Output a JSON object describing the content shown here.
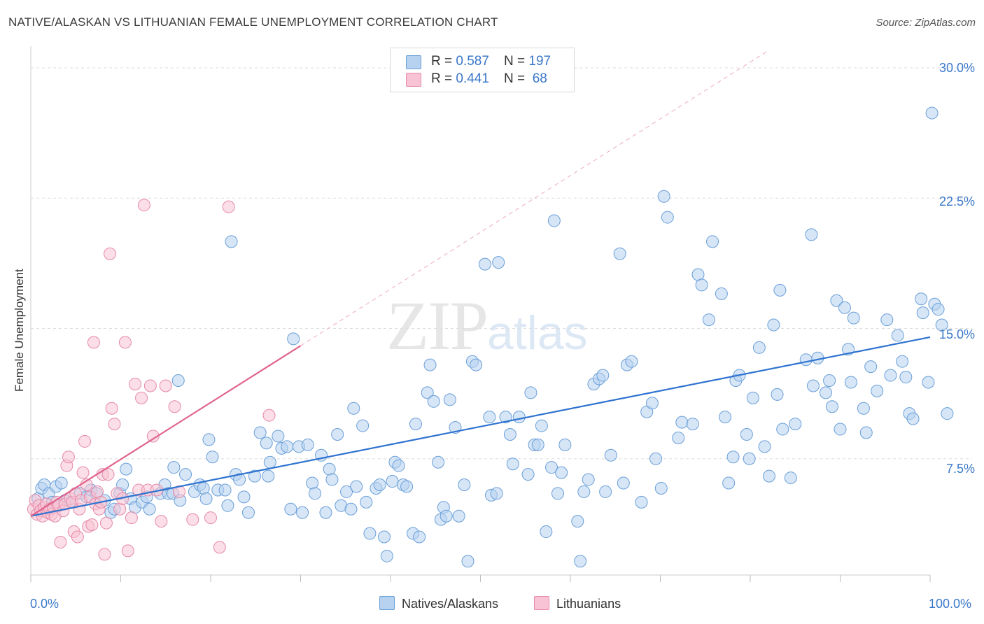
{
  "header": {
    "title": "NATIVE/ALASKAN VS LITHUANIAN FEMALE UNEMPLOYMENT CORRELATION CHART",
    "source": "Source: ZipAtlas.com"
  },
  "legend": {
    "rows": [
      {
        "r_label": "R = ",
        "r_value": "0.587",
        "n_label": "N = ",
        "n_value": "197"
      },
      {
        "r_label": "R = ",
        "r_value": "0.441",
        "n_label": "N = ",
        "n_value": " 68"
      }
    ]
  },
  "bottom_legend": {
    "natives": "Natives/Alaskans",
    "lithuanians": "Lithuanians"
  },
  "watermark": {
    "zip": "ZIP",
    "atlas": "atlas"
  },
  "colors": {
    "blue_fill": "#b7d2f1",
    "blue_stroke": "#6a9fd8",
    "blue_line": "#2f73d0",
    "pink_fill": "#f8c3d4",
    "pink_stroke": "#e68aa8",
    "pink_line": "#e0638d",
    "grid": "#dddddd",
    "axis_text": "#3b78c9"
  },
  "chart_data": {
    "type": "scatter",
    "title": "NATIVE/ALASKAN VS LITHUANIAN FEMALE UNEMPLOYMENT CORRELATION CHART",
    "xlabel": "",
    "ylabel": "Female Unemployment",
    "x_ticks": [
      "0.0%",
      "100.0%"
    ],
    "y_ticks": [
      "7.5%",
      "15.0%",
      "22.5%",
      "30.0%"
    ],
    "xlim": [
      0,
      100
    ],
    "ylim": [
      0,
      30.8
    ],
    "grid": true,
    "legend_position": "top-center",
    "series": [
      {
        "name": "Natives/Alaskans",
        "r": 0.587,
        "n": 197,
        "trend": {
          "x": [
            0,
            100
          ],
          "y": [
            4.2,
            14.5
          ]
        },
        "points": [
          [
            0.8,
            5.2
          ],
          [
            1.2,
            5.8
          ],
          [
            1.5,
            6.0
          ],
          [
            2.0,
            5.5
          ],
          [
            2.4,
            5.0
          ],
          [
            2.8,
            5.9
          ],
          [
            3.4,
            6.1
          ],
          [
            3.8,
            5.1
          ],
          [
            4.6,
            5.0
          ],
          [
            5.5,
            5.5
          ],
          [
            6.2,
            5.3
          ],
          [
            6.7,
            5.7
          ],
          [
            7.3,
            5.5
          ],
          [
            8.2,
            5.1
          ],
          [
            8.9,
            4.4
          ],
          [
            9.3,
            4.6
          ],
          [
            9.9,
            5.5
          ],
          [
            10.2,
            6.0
          ],
          [
            10.6,
            6.9
          ],
          [
            11.1,
            5.2
          ],
          [
            11.6,
            4.7
          ],
          [
            12.4,
            5.0
          ],
          [
            12.9,
            5.3
          ],
          [
            13.2,
            4.6
          ],
          [
            14.4,
            5.5
          ],
          [
            14.9,
            6.0
          ],
          [
            15.3,
            5.5
          ],
          [
            15.8,
            5.5
          ],
          [
            15.9,
            7.0
          ],
          [
            16.4,
            12.0
          ],
          [
            16.6,
            5.1
          ],
          [
            17.2,
            6.6
          ],
          [
            18.2,
            5.6
          ],
          [
            18.8,
            6.0
          ],
          [
            19.2,
            5.8
          ],
          [
            19.5,
            5.2
          ],
          [
            19.8,
            8.6
          ],
          [
            20.2,
            7.6
          ],
          [
            20.8,
            5.7
          ],
          [
            21.6,
            5.7
          ],
          [
            21.9,
            4.8
          ],
          [
            22.3,
            20.0
          ],
          [
            22.8,
            6.6
          ],
          [
            23.2,
            6.3
          ],
          [
            23.7,
            5.3
          ],
          [
            24.2,
            4.4
          ],
          [
            24.9,
            6.5
          ],
          [
            25.5,
            9.0
          ],
          [
            26.2,
            8.4
          ],
          [
            26.4,
            6.5
          ],
          [
            26.6,
            7.3
          ],
          [
            27.5,
            8.8
          ],
          [
            27.9,
            8.1
          ],
          [
            28.5,
            8.2
          ],
          [
            28.9,
            4.6
          ],
          [
            29.2,
            14.4
          ],
          [
            29.8,
            8.2
          ],
          [
            30.2,
            4.4
          ],
          [
            30.8,
            8.3
          ],
          [
            31.3,
            6.1
          ],
          [
            31.6,
            5.5
          ],
          [
            32.3,
            7.7
          ],
          [
            32.8,
            4.4
          ],
          [
            33.2,
            6.9
          ],
          [
            33.5,
            6.3
          ],
          [
            34.1,
            8.9
          ],
          [
            34.5,
            4.8
          ],
          [
            35.1,
            5.6
          ],
          [
            35.6,
            4.6
          ],
          [
            35.9,
            10.4
          ],
          [
            36.2,
            5.9
          ],
          [
            36.9,
            9.4
          ],
          [
            37.3,
            5.0
          ],
          [
            37.7,
            3.2
          ],
          [
            38.4,
            5.8
          ],
          [
            38.8,
            6.0
          ],
          [
            39.3,
            3.0
          ],
          [
            39.6,
            1.9
          ],
          [
            40.2,
            6.2
          ],
          [
            40.5,
            7.3
          ],
          [
            40.9,
            7.1
          ],
          [
            41.4,
            6.0
          ],
          [
            41.8,
            5.9
          ],
          [
            42.5,
            3.2
          ],
          [
            42.8,
            9.5
          ],
          [
            43.2,
            3.0
          ],
          [
            44.1,
            11.3
          ],
          [
            44.4,
            12.9
          ],
          [
            44.8,
            10.8
          ],
          [
            45.3,
            7.3
          ],
          [
            45.6,
            4.0
          ],
          [
            45.9,
            4.7
          ],
          [
            46.2,
            4.2
          ],
          [
            46.6,
            10.9
          ],
          [
            47.2,
            9.3
          ],
          [
            47.6,
            4.2
          ],
          [
            48.2,
            6.0
          ],
          [
            48.6,
            1.6
          ],
          [
            49.1,
            13.1
          ],
          [
            49.5,
            12.9
          ],
          [
            50.5,
            18.7
          ],
          [
            51.0,
            9.9
          ],
          [
            51.2,
            5.4
          ],
          [
            51.8,
            5.5
          ],
          [
            52.0,
            18.8
          ],
          [
            52.8,
            9.9
          ],
          [
            53.3,
            8.9
          ],
          [
            53.6,
            7.2
          ],
          [
            54.3,
            9.9
          ],
          [
            55.3,
            6.6
          ],
          [
            55.6,
            11.3
          ],
          [
            56.0,
            8.3
          ],
          [
            56.4,
            8.3
          ],
          [
            56.8,
            9.4
          ],
          [
            57.3,
            3.3
          ],
          [
            57.9,
            7.0
          ],
          [
            58.2,
            21.2
          ],
          [
            58.6,
            5.5
          ],
          [
            59.0,
            6.7
          ],
          [
            59.4,
            8.3
          ],
          [
            60.8,
            3.9
          ],
          [
            61.1,
            1.6
          ],
          [
            61.5,
            5.6
          ],
          [
            62.0,
            6.3
          ],
          [
            62.6,
            11.8
          ],
          [
            63.2,
            12.1
          ],
          [
            63.6,
            12.3
          ],
          [
            63.9,
            5.6
          ],
          [
            64.5,
            7.7
          ],
          [
            65.5,
            19.3
          ],
          [
            65.9,
            6.1
          ],
          [
            66.3,
            12.9
          ],
          [
            66.8,
            13.1
          ],
          [
            67.9,
            5.0
          ],
          [
            68.5,
            10.2
          ],
          [
            69.1,
            10.7
          ],
          [
            69.5,
            7.5
          ],
          [
            70.1,
            5.8
          ],
          [
            70.4,
            22.6
          ],
          [
            70.8,
            21.4
          ],
          [
            72.0,
            8.7
          ],
          [
            72.4,
            9.6
          ],
          [
            73.6,
            9.5
          ],
          [
            74.2,
            18.1
          ],
          [
            74.6,
            17.5
          ],
          [
            75.4,
            15.5
          ],
          [
            75.8,
            20.0
          ],
          [
            76.8,
            17.0
          ],
          [
            77.2,
            9.9
          ],
          [
            77.6,
            6.1
          ],
          [
            78.1,
            7.6
          ],
          [
            78.4,
            12.0
          ],
          [
            78.8,
            12.3
          ],
          [
            79.6,
            8.9
          ],
          [
            79.9,
            7.5
          ],
          [
            80.3,
            11.0
          ],
          [
            81.0,
            13.9
          ],
          [
            81.6,
            8.2
          ],
          [
            82.1,
            6.5
          ],
          [
            82.6,
            15.2
          ],
          [
            83.0,
            11.2
          ],
          [
            83.3,
            17.2
          ],
          [
            83.6,
            9.2
          ],
          [
            84.5,
            6.4
          ],
          [
            85.0,
            9.5
          ],
          [
            86.2,
            13.2
          ],
          [
            86.8,
            20.4
          ],
          [
            87.0,
            11.7
          ],
          [
            87.5,
            13.3
          ],
          [
            88.4,
            11.3
          ],
          [
            88.8,
            12.0
          ],
          [
            89.1,
            10.5
          ],
          [
            89.6,
            16.6
          ],
          [
            90.0,
            9.2
          ],
          [
            90.5,
            16.2
          ],
          [
            90.9,
            13.8
          ],
          [
            91.2,
            11.9
          ],
          [
            91.5,
            15.6
          ],
          [
            92.6,
            10.4
          ],
          [
            92.9,
            9.0
          ],
          [
            93.4,
            12.8
          ],
          [
            94.1,
            11.4
          ],
          [
            95.2,
            15.5
          ],
          [
            95.6,
            12.3
          ],
          [
            96.4,
            14.6
          ],
          [
            96.9,
            13.1
          ],
          [
            97.3,
            12.2
          ],
          [
            97.7,
            10.1
          ],
          [
            98.1,
            9.8
          ],
          [
            99.0,
            16.7
          ],
          [
            99.2,
            15.9
          ],
          [
            99.8,
            11.9
          ],
          [
            100.2,
            27.4
          ],
          [
            100.5,
            16.4
          ],
          [
            100.9,
            16.1
          ],
          [
            101.3,
            15.2
          ],
          [
            101.9,
            10.1
          ]
        ]
      },
      {
        "name": "Lithuanians",
        "r": 0.441,
        "n": 68,
        "trend": {
          "x": [
            0,
            30
          ],
          "y": [
            4.2,
            14.0
          ]
        },
        "points": [
          [
            0.3,
            4.6
          ],
          [
            0.5,
            5.1
          ],
          [
            0.7,
            4.3
          ],
          [
            0.9,
            4.8
          ],
          [
            1.1,
            4.5
          ],
          [
            1.3,
            4.2
          ],
          [
            1.5,
            4.7
          ],
          [
            1.7,
            4.9
          ],
          [
            1.9,
            4.4
          ],
          [
            2.1,
            4.6
          ],
          [
            2.3,
            4.3
          ],
          [
            2.5,
            4.7
          ],
          [
            2.7,
            4.2
          ],
          [
            2.9,
            5.0
          ],
          [
            3.1,
            4.8
          ],
          [
            3.3,
            2.7
          ],
          [
            3.6,
            4.5
          ],
          [
            3.8,
            4.9
          ],
          [
            4.0,
            7.1
          ],
          [
            4.2,
            7.6
          ],
          [
            4.4,
            5.2
          ],
          [
            4.6,
            5.0
          ],
          [
            4.8,
            3.3
          ],
          [
            5.0,
            5.5
          ],
          [
            5.2,
            3.0
          ],
          [
            5.4,
            4.6
          ],
          [
            5.6,
            5.1
          ],
          [
            5.8,
            6.7
          ],
          [
            6.0,
            8.5
          ],
          [
            6.2,
            6.0
          ],
          [
            6.4,
            3.6
          ],
          [
            6.6,
            5.3
          ],
          [
            6.8,
            3.7
          ],
          [
            7.0,
            14.2
          ],
          [
            7.2,
            4.9
          ],
          [
            7.4,
            5.6
          ],
          [
            7.6,
            4.6
          ],
          [
            7.8,
            5.0
          ],
          [
            8.0,
            6.6
          ],
          [
            8.2,
            2.0
          ],
          [
            8.4,
            3.8
          ],
          [
            8.6,
            6.6
          ],
          [
            8.8,
            19.3
          ],
          [
            9.0,
            10.4
          ],
          [
            9.3,
            9.5
          ],
          [
            9.6,
            5.5
          ],
          [
            9.9,
            4.6
          ],
          [
            10.2,
            5.2
          ],
          [
            10.5,
            14.2
          ],
          [
            10.8,
            2.2
          ],
          [
            11.2,
            4.1
          ],
          [
            11.6,
            11.8
          ],
          [
            12.0,
            5.7
          ],
          [
            12.3,
            11.0
          ],
          [
            12.6,
            22.1
          ],
          [
            13.0,
            5.7
          ],
          [
            13.3,
            11.7
          ],
          [
            13.6,
            8.8
          ],
          [
            14.0,
            5.7
          ],
          [
            14.5,
            3.9
          ],
          [
            15.0,
            11.7
          ],
          [
            16.0,
            10.5
          ],
          [
            16.5,
            5.6
          ],
          [
            18.0,
            4.0
          ],
          [
            20.0,
            4.1
          ],
          [
            21.0,
            2.4
          ],
          [
            22.0,
            22.0
          ],
          [
            26.5,
            10.0
          ]
        ]
      }
    ]
  }
}
